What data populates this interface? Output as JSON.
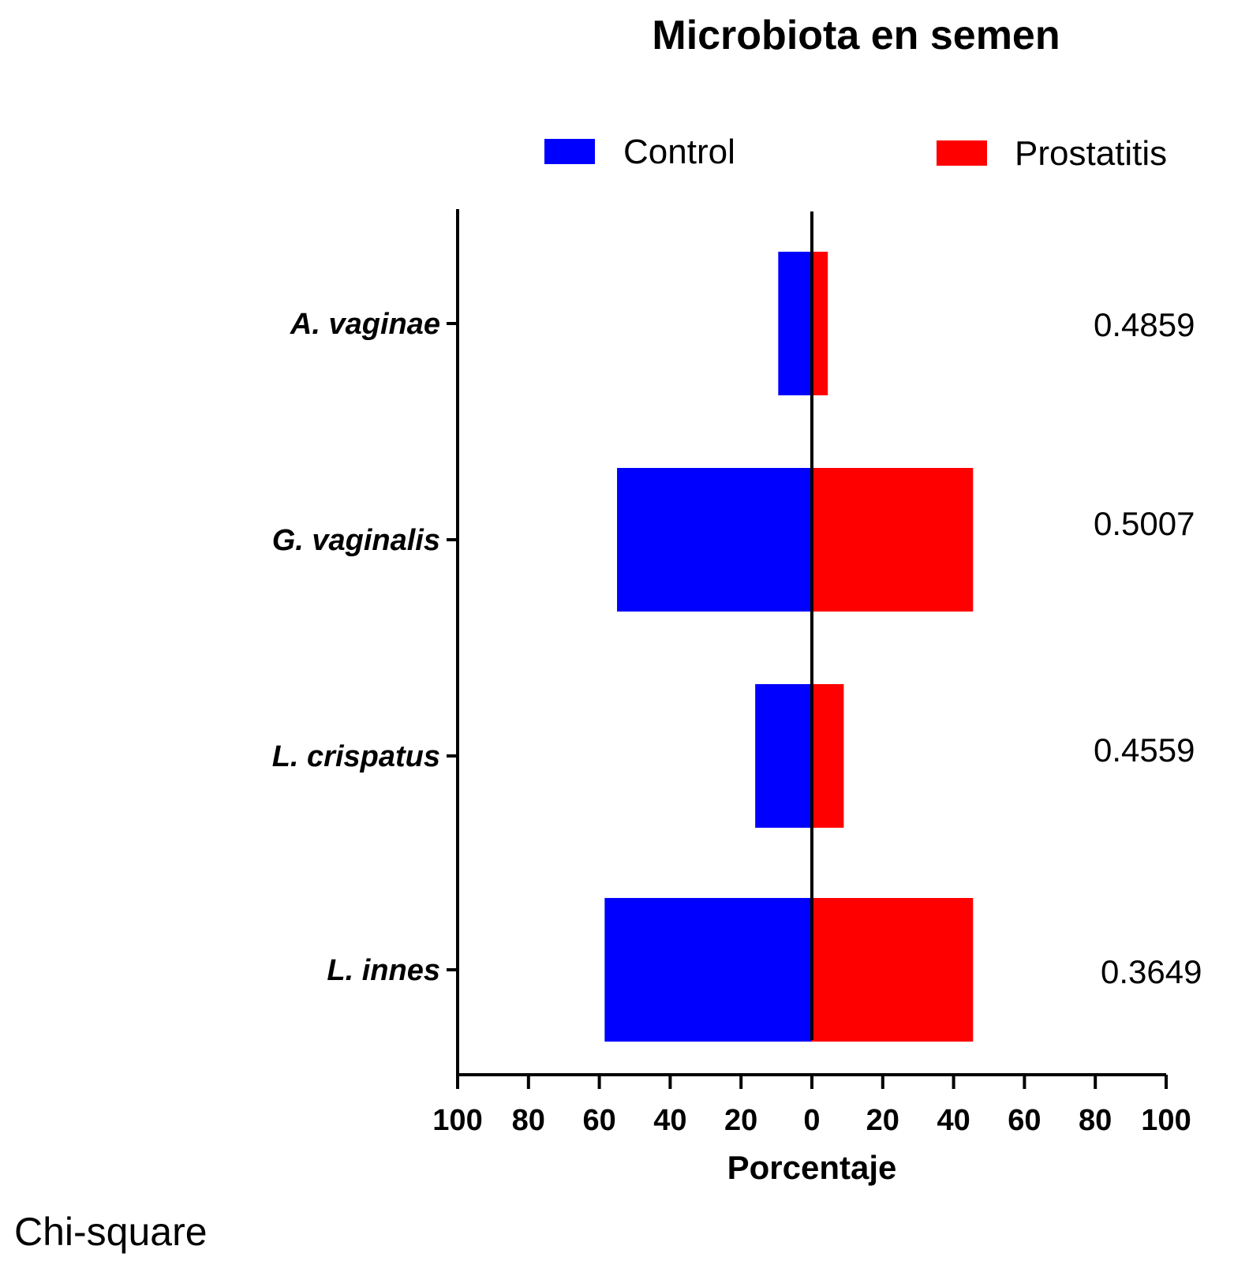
{
  "chart_data": {
    "type": "bar",
    "orientation": "horizontal-diverging",
    "title": "Microbiota en semen",
    "xlabel": "Porcentaje",
    "ylabel": "",
    "categories": [
      "A. vaginae",
      "G. vaginalis",
      "L. crispatus",
      "L. innes"
    ],
    "series": [
      {
        "name": "Control",
        "color": "#0000ff",
        "direction": "left",
        "values": [
          9.5,
          55,
          16,
          58.5
        ]
      },
      {
        "name": "Prostatitis",
        "color": "#ff0000",
        "direction": "right",
        "values": [
          4.5,
          45.5,
          9,
          45.5
        ]
      }
    ],
    "xlim": [
      -100,
      100
    ],
    "xticks": [
      -100,
      -80,
      -60,
      -40,
      -20,
      0,
      20,
      40,
      60,
      80,
      100
    ],
    "xtick_labels": [
      "100",
      "80",
      "60",
      "40",
      "20",
      "0",
      "20",
      "40",
      "60",
      "80",
      "100"
    ],
    "annotations": [
      "0.4859",
      "0.5007",
      "0.4559",
      "0.3649"
    ],
    "legend_position": "top",
    "grid": false
  },
  "footnote": "Chi-square"
}
